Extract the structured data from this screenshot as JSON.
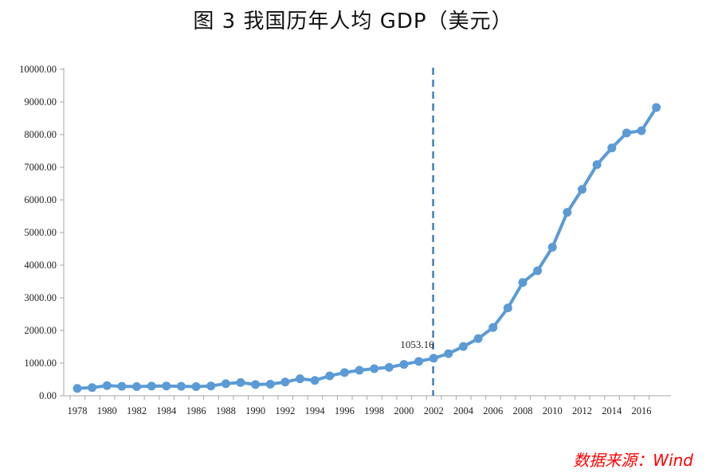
{
  "title": "图 3 我国历年人均 GDP（美元）",
  "source": "数据来源：Wind",
  "colors": {
    "series": "#5b9bd5",
    "refline": "#3f7fbf",
    "source_text": "#ff0000"
  },
  "chart_data": {
    "type": "line",
    "x": [
      1978,
      1979,
      1980,
      1981,
      1982,
      1983,
      1984,
      1985,
      1986,
      1987,
      1988,
      1989,
      1990,
      1991,
      1992,
      1993,
      1994,
      1995,
      1996,
      1997,
      1998,
      1999,
      2000,
      2001,
      2002,
      2003,
      2004,
      2005,
      2006,
      2007,
      2008,
      2009,
      2010,
      2011,
      2012,
      2013,
      2014,
      2015,
      2016,
      2017
    ],
    "series": [
      {
        "values": [
          225,
          250,
          310,
          290,
          280,
          295,
          300,
          290,
          280,
          300,
          370,
          405,
          345,
          355,
          420,
          520,
          470,
          610,
          710,
          780,
          830,
          870,
          960,
          1053.16,
          1150,
          1290,
          1510,
          1750,
          2090,
          2690,
          3470,
          3830,
          4550,
          5620,
          6320,
          7080,
          7590,
          8050,
          8120,
          8830
        ]
      }
    ],
    "xticks": [
      "1978",
      "1980",
      "1982",
      "1984",
      "1986",
      "1988",
      "1990",
      "1992",
      "1994",
      "1996",
      "1998",
      "2000",
      "2002",
      "2004",
      "2006",
      "2008",
      "2010",
      "2012",
      "2014",
      "2016"
    ],
    "ylim": [
      0,
      10000
    ],
    "yticks": [
      "0.00",
      "1000.00",
      "2000.00",
      "3000.00",
      "4000.00",
      "5000.00",
      "6000.00",
      "7000.00",
      "8000.00",
      "9000.00",
      "10000.00"
    ],
    "reference_line": {
      "x": 2001,
      "style": "dashed"
    },
    "annotation": {
      "x": 2001,
      "label": "1053.16"
    },
    "xlabel": "",
    "ylabel": "",
    "grid": false,
    "legend": "none"
  }
}
